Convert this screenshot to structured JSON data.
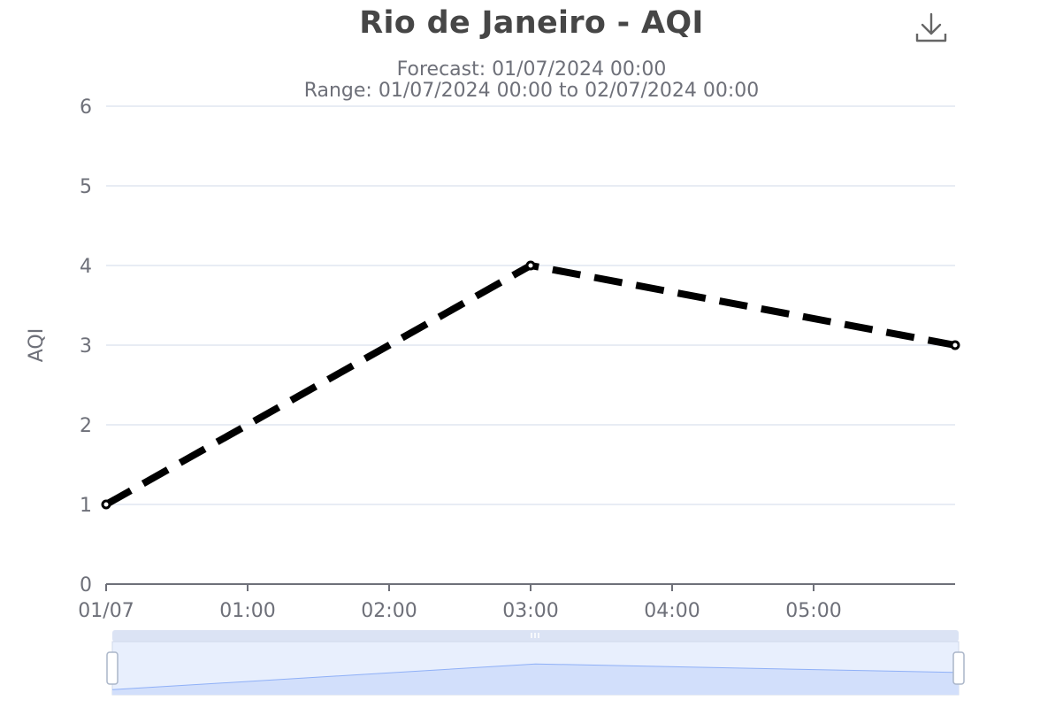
{
  "toolbar": {
    "download_icon": "download-icon"
  },
  "colors": {
    "line": "#000000",
    "grid": "#e0e6f1",
    "axis": "#6e7079",
    "title": "#464646",
    "zoom_fill": "#d2dffb",
    "zoom_line": "#8fb0f7",
    "zoom_handle_bar": "#dbe3f4"
  },
  "chart_data": {
    "type": "line",
    "title": "Rio de Janeiro - AQI",
    "subtitle_lines": [
      "Forecast: 01/07/2024 00:00",
      "Range: 01/07/2024 00:00 to 02/07/2024 00:00"
    ],
    "ylabel": "AQI",
    "xlabel": "",
    "ylim": [
      0,
      6
    ],
    "y_ticks": [
      0,
      1,
      2,
      3,
      4,
      5,
      6
    ],
    "x_range": [
      "01/07/2024 00:00",
      "01/07/2024 06:00"
    ],
    "x_tick_labels": [
      "01/07",
      "01:00",
      "02:00",
      "03:00",
      "04:00",
      "05:00"
    ],
    "x_tick_hours": [
      0,
      1,
      2,
      3,
      4,
      5
    ],
    "grid": true,
    "line_style": "dashed",
    "series": [
      {
        "x": [
          "01/07/2024 00:00",
          "01/07/2024 03:00",
          "01/07/2024 06:00"
        ],
        "x_hours": [
          0,
          3,
          6
        ],
        "values": [
          1,
          4,
          3
        ]
      }
    ],
    "data_zoom": {
      "visible": true,
      "start_percent": 0,
      "end_percent": 100
    }
  }
}
